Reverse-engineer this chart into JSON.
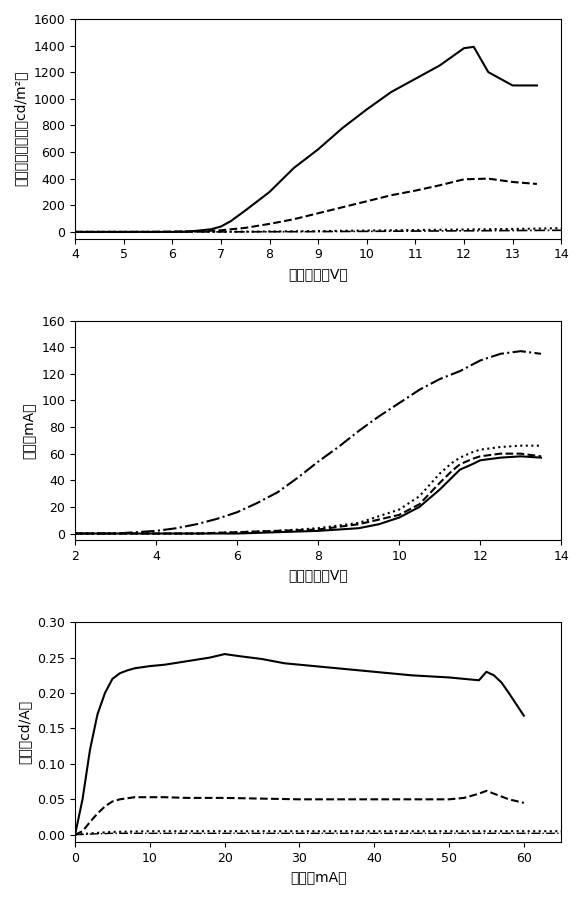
{
  "plot1": {
    "xlabel": "バイアス（V）",
    "ylabel": "ルミネッセンス（cd/m²）",
    "xlim": [
      4,
      14
    ],
    "ylim": [
      -50,
      1600
    ],
    "yticks": [
      0,
      200,
      400,
      600,
      800,
      1000,
      1200,
      1400,
      1600
    ],
    "xticks": [
      4,
      5,
      6,
      7,
      8,
      9,
      10,
      11,
      12,
      13,
      14
    ],
    "curves": [
      {
        "x": [
          4,
          5,
          5.5,
          6.0,
          6.3,
          6.5,
          6.8,
          7.0,
          7.2,
          7.5,
          8.0,
          8.5,
          9.0,
          9.5,
          10.0,
          10.5,
          11.0,
          11.5,
          12.0,
          12.2,
          12.5,
          13.0,
          13.5
        ],
        "y": [
          0,
          0,
          0,
          0,
          2,
          8,
          20,
          40,
          80,
          160,
          300,
          480,
          620,
          780,
          920,
          1050,
          1150,
          1250,
          1380,
          1390,
          1200,
          1100,
          1100
        ],
        "style": "solid",
        "color": "#000000",
        "lw": 1.5
      },
      {
        "x": [
          4,
          5,
          5.5,
          6.0,
          6.5,
          7.0,
          7.5,
          8.0,
          8.5,
          9.0,
          9.5,
          10.0,
          10.5,
          11.0,
          11.5,
          12.0,
          12.5,
          13.0,
          13.5
        ],
        "y": [
          0,
          0,
          0,
          2,
          5,
          12,
          30,
          60,
          95,
          140,
          185,
          230,
          275,
          310,
          350,
          395,
          400,
          375,
          360
        ],
        "style": "dashed",
        "color": "#000000",
        "lw": 1.5
      },
      {
        "x": [
          4,
          5,
          6,
          7,
          8,
          9,
          10,
          11,
          12,
          13,
          14
        ],
        "y": [
          0,
          0,
          0,
          1,
          3,
          6,
          10,
          14,
          18,
          22,
          28
        ],
        "style": "dotted",
        "color": "#000000",
        "lw": 1.5
      },
      {
        "x": [
          4,
          5,
          6,
          7,
          8,
          9,
          10,
          11,
          12,
          13,
          14
        ],
        "y": [
          0,
          0,
          0,
          0,
          1,
          2,
          4,
          6,
          8,
          10,
          12
        ],
        "style": "dashdot",
        "color": "#000000",
        "lw": 1.2
      }
    ]
  },
  "plot2": {
    "xlabel": "バイアス（V）",
    "ylabel": "電流（mA）",
    "xlim": [
      2,
      14
    ],
    "ylim": [
      -5,
      160
    ],
    "yticks": [
      0,
      20,
      40,
      60,
      80,
      100,
      120,
      140,
      160
    ],
    "xticks": [
      2,
      4,
      6,
      8,
      10,
      12,
      14
    ],
    "curves": [
      {
        "x": [
          2,
          3,
          3.5,
          4.0,
          4.5,
          5.0,
          5.5,
          6.0,
          6.5,
          7.0,
          7.5,
          8.0,
          8.5,
          9.0,
          9.5,
          10.0,
          10.5,
          11.0,
          11.5,
          12.0,
          12.5,
          13.0,
          13.5
        ],
        "y": [
          0,
          0,
          1,
          2,
          4,
          7,
          11,
          16,
          23,
          31,
          42,
          54,
          65,
          77,
          88,
          98,
          108,
          116,
          122,
          130,
          135,
          137,
          135
        ],
        "style": "dashdot",
        "color": "#000000",
        "lw": 1.5
      },
      {
        "x": [
          2,
          3,
          4,
          5,
          6,
          7,
          8,
          9,
          10,
          10.5,
          11.0,
          11.3,
          11.5,
          11.8,
          12.0,
          12.5,
          13.0,
          13.5
        ],
        "y": [
          0,
          0,
          0,
          0,
          1,
          2,
          4,
          8,
          18,
          28,
          45,
          53,
          57,
          61,
          63,
          65,
          66,
          66
        ],
        "style": "dotted",
        "color": "#000000",
        "lw": 1.5
      },
      {
        "x": [
          2,
          3,
          4,
          5,
          6,
          7,
          8,
          9,
          10,
          10.5,
          11.0,
          11.3,
          11.5,
          11.8,
          12.0,
          12.5,
          13.0,
          13.5
        ],
        "y": [
          0,
          0,
          0,
          0,
          1,
          2,
          3,
          7,
          14,
          22,
          38,
          47,
          52,
          56,
          58,
          60,
          60,
          58
        ],
        "style": "dashed",
        "color": "#000000",
        "lw": 1.5
      },
      {
        "x": [
          2,
          3,
          4,
          5,
          6,
          7,
          8,
          9,
          9.5,
          10.0,
          10.5,
          11.0,
          11.3,
          11.5,
          11.8,
          12.0,
          12.5,
          13.0,
          13.5
        ],
        "y": [
          0,
          0,
          0,
          0,
          0,
          1,
          2,
          4,
          7,
          12,
          20,
          33,
          42,
          48,
          52,
          55,
          57,
          58,
          57
        ],
        "style": "solid",
        "color": "#000000",
        "lw": 1.5
      }
    ]
  },
  "plot3": {
    "xlabel": "電流（mA）",
    "ylabel": "効率（cd/A）",
    "xlim": [
      0,
      65
    ],
    "ylim": [
      -0.01,
      0.3
    ],
    "yticks": [
      0.0,
      0.05,
      0.1,
      0.15,
      0.2,
      0.25,
      0.3
    ],
    "xticks": [
      0,
      10,
      20,
      30,
      40,
      50,
      60
    ],
    "curves": [
      {
        "x": [
          0,
          1,
          2,
          3,
          4,
          5,
          6,
          7,
          8,
          10,
          12,
          15,
          18,
          20,
          22,
          25,
          28,
          30,
          35,
          40,
          45,
          50,
          52,
          54,
          55,
          56,
          57,
          58,
          60
        ],
        "y": [
          0,
          0.05,
          0.12,
          0.17,
          0.2,
          0.22,
          0.228,
          0.232,
          0.235,
          0.238,
          0.24,
          0.245,
          0.25,
          0.255,
          0.252,
          0.248,
          0.242,
          0.24,
          0.235,
          0.23,
          0.225,
          0.222,
          0.22,
          0.218,
          0.23,
          0.225,
          0.215,
          0.2,
          0.168
        ],
        "style": "solid",
        "color": "#000000",
        "lw": 1.5
      },
      {
        "x": [
          0,
          1,
          2,
          3,
          4,
          5,
          6,
          8,
          10,
          12,
          15,
          20,
          25,
          30,
          35,
          40,
          45,
          50,
          52,
          54,
          55,
          58,
          60
        ],
        "y": [
          0,
          0.005,
          0.018,
          0.03,
          0.04,
          0.047,
          0.05,
          0.053,
          0.053,
          0.053,
          0.052,
          0.052,
          0.051,
          0.05,
          0.05,
          0.05,
          0.05,
          0.05,
          0.052,
          0.058,
          0.062,
          0.05,
          0.045
        ],
        "style": "dashed",
        "color": "#000000",
        "lw": 1.5
      },
      {
        "x": [
          0,
          2,
          5,
          10,
          15,
          20,
          25,
          30,
          35,
          40,
          45,
          50,
          55,
          60,
          65
        ],
        "y": [
          0,
          0.002,
          0.004,
          0.005,
          0.005,
          0.005,
          0.005,
          0.005,
          0.005,
          0.005,
          0.005,
          0.005,
          0.005,
          0.005,
          0.005
        ],
        "style": "dotted",
        "color": "#000000",
        "lw": 1.5
      },
      {
        "x": [
          0,
          2,
          5,
          10,
          15,
          20,
          25,
          30,
          35,
          40,
          45,
          50,
          55,
          60,
          65
        ],
        "y": [
          0,
          0.001,
          0.002,
          0.002,
          0.002,
          0.002,
          0.002,
          0.002,
          0.002,
          0.002,
          0.002,
          0.002,
          0.002,
          0.002,
          0.002
        ],
        "style": "dashdot",
        "color": "#000000",
        "lw": 1.0
      }
    ]
  },
  "font_size": 10,
  "tick_font_size": 9,
  "label_font_size": 10
}
